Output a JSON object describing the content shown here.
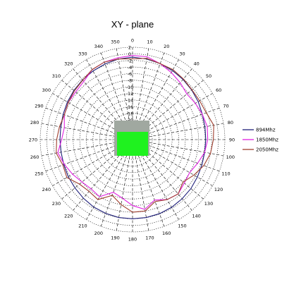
{
  "chart_data": {
    "type": "polar-line",
    "title": "XY - plane",
    "angle_ticks": [
      0,
      10,
      20,
      30,
      40,
      50,
      60,
      70,
      80,
      90,
      100,
      110,
      120,
      130,
      140,
      150,
      160,
      170,
      180,
      190,
      200,
      210,
      220,
      230,
      240,
      250,
      260,
      270,
      280,
      290,
      300,
      310,
      320,
      330,
      340,
      350
    ],
    "ring_ticks": [
      "2",
      "0",
      "-2",
      "-4",
      "-6",
      "-8",
      "-10",
      "-12",
      "-14",
      "-16",
      "-18",
      "-20",
      "-22",
      "-24"
    ],
    "r_range": [
      -24,
      4
    ],
    "grid": true,
    "legend_position": "right",
    "angles": [
      0,
      10,
      20,
      30,
      40,
      50,
      60,
      70,
      80,
      90,
      100,
      110,
      120,
      130,
      140,
      150,
      160,
      170,
      180,
      190,
      200,
      210,
      220,
      230,
      240,
      250,
      260,
      270,
      280,
      290,
      300,
      310,
      320,
      330,
      340,
      350
    ],
    "series": [
      {
        "name": "894Mhz",
        "color": "#1f1f7a",
        "values": [
          1.0,
          0.8,
          0.5,
          0.2,
          -0.2,
          -0.6,
          -1.0,
          -1.5,
          -1.7,
          -1.8,
          -1.8,
          -1.6,
          -1.3,
          -0.9,
          -0.6,
          -0.3,
          -0.1,
          0.0,
          0.0,
          0.0,
          -0.2,
          -0.4,
          -0.8,
          -1.2,
          -1.5,
          -1.8,
          -2.0,
          -2.0,
          -1.9,
          -1.6,
          -1.2,
          -0.8,
          -0.4,
          0.0,
          0.4,
          0.8
        ]
      },
      {
        "name": "1850Mhz",
        "color": "#e020e0",
        "values": [
          1.5,
          1.5,
          0.5,
          -0.5,
          -1.5,
          -2.5,
          -2.0,
          -1.5,
          -1.0,
          -1.2,
          -1.8,
          -3.0,
          -4.0,
          -3.5,
          -2.5,
          -3.0,
          -4.5,
          -2.5,
          -4.0,
          -6.0,
          -7.0,
          -4.0,
          -4.5,
          -4.0,
          -3.0,
          -2.0,
          -1.0,
          -2.5,
          -3.0,
          -2.0,
          -1.5,
          -1.5,
          -1.0,
          0.5,
          1.0,
          1.2
        ]
      },
      {
        "name": "2050Mhz",
        "color": "#a04030",
        "values": [
          0.5,
          1.0,
          0.5,
          0.5,
          0.0,
          -0.5,
          -0.5,
          -0.2,
          1.0,
          0.5,
          0.0,
          -1.0,
          -2.5,
          -4.0,
          -2.5,
          -3.0,
          -4.0,
          -2.0,
          -2.0,
          -4.0,
          -6.0,
          -3.0,
          -3.5,
          -3.0,
          -1.0,
          -1.5,
          -0.5,
          -1.0,
          -1.5,
          -2.0,
          -1.5,
          -1.0,
          -0.5,
          0.5,
          1.0,
          0.8
        ]
      }
    ]
  },
  "colors": {
    "grid": "#000000",
    "center_fill": "#1ff21f",
    "center_frame": "#a0a8a0"
  }
}
